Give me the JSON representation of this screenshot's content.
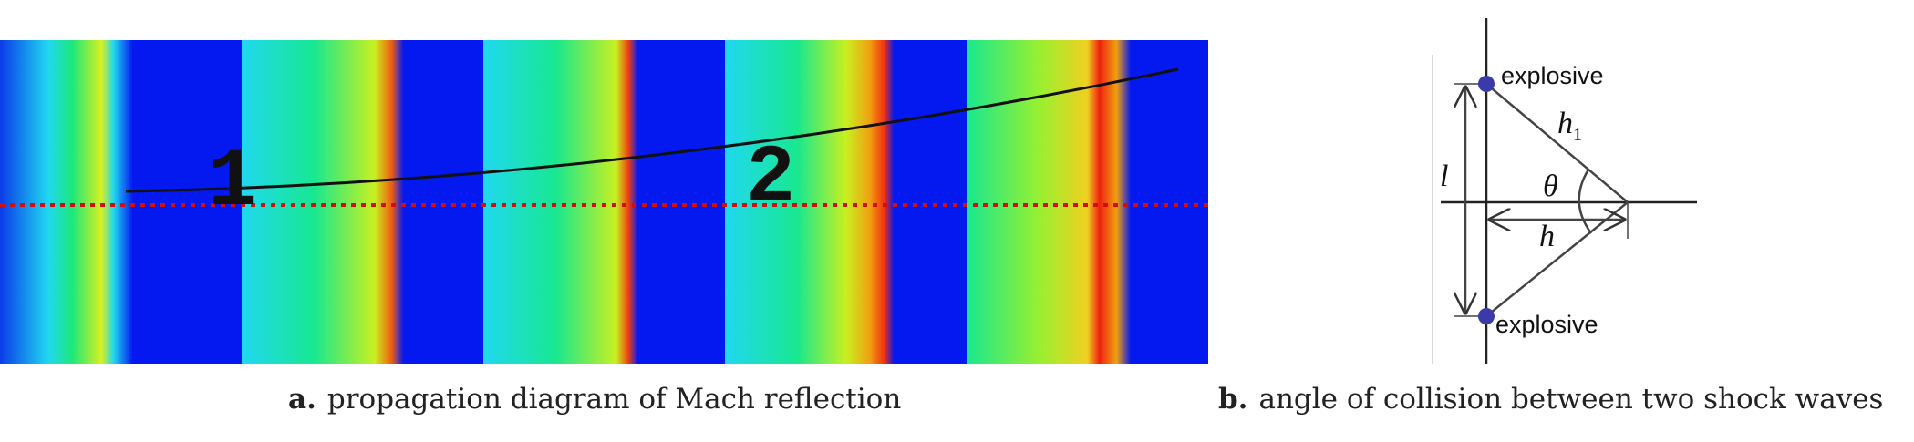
{
  "panel_a": {
    "markers": [
      "1",
      "2"
    ],
    "label": "a.",
    "caption": "propagation diagram of Mach reflection"
  },
  "panel_b": {
    "top_point": "explosive",
    "bottom_point": "explosive",
    "hypotenuse": "h",
    "hypotenuse_sub": "1",
    "separation": "l",
    "angle": "θ",
    "distance": "h",
    "label": "b.",
    "caption": "angle of collision between two shock waves"
  }
}
